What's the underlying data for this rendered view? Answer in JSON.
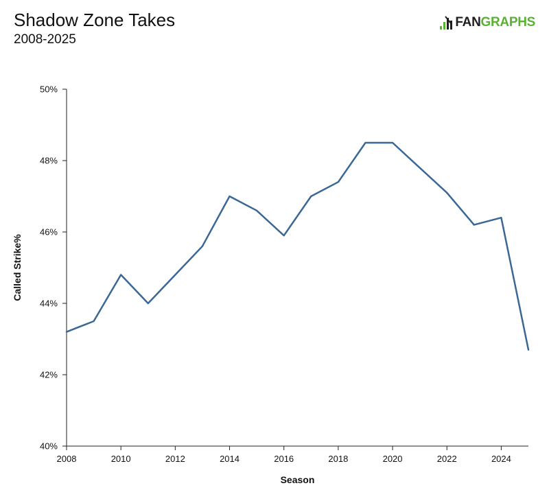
{
  "header": {
    "title": "Shadow Zone Takes",
    "subtitle": "2008-2025"
  },
  "logo": {
    "text_fan": "FAN",
    "text_graphs": "GRAPHS",
    "brand_dark": "#1f1f1f",
    "brand_green": "#59b234"
  },
  "chart_data": {
    "type": "line",
    "xlabel": "Season",
    "ylabel": "Called Strike%",
    "xlim": [
      2008,
      2025
    ],
    "ylim": [
      40,
      50
    ],
    "x_ticks": [
      2008,
      2010,
      2012,
      2014,
      2016,
      2018,
      2020,
      2022,
      2024
    ],
    "x_tick_labels": [
      "2008",
      "2010",
      "2012",
      "2014",
      "2016",
      "2018",
      "2020",
      "2022",
      "2024"
    ],
    "y_ticks": [
      40,
      42,
      44,
      46,
      48,
      50
    ],
    "y_tick_labels": [
      "40%",
      "42%",
      "44%",
      "46%",
      "48%",
      "50%"
    ],
    "grid": false,
    "line_color": "#3a6794",
    "series": [
      {
        "x": [
          2008,
          2009,
          2010,
          2011,
          2012,
          2013,
          2014,
          2015,
          2016,
          2017,
          2018,
          2019,
          2020,
          2021,
          2022,
          2023,
          2024,
          2025
        ],
        "values": [
          43.2,
          43.5,
          44.8,
          44.0,
          44.8,
          45.6,
          47.0,
          46.6,
          45.9,
          47.0,
          47.4,
          48.5,
          48.5,
          47.8,
          47.1,
          46.2,
          46.4,
          42.7
        ]
      }
    ]
  }
}
